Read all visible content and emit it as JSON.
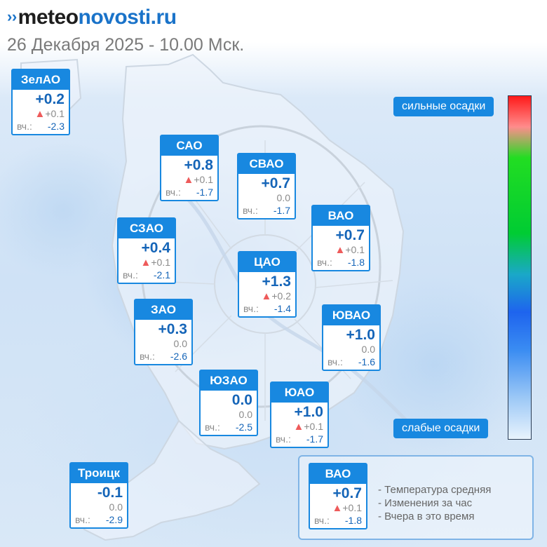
{
  "header": {
    "logo_part1": "meteo",
    "logo_part2": "novosti.ru",
    "logo_icon": "double-chevron-icon",
    "datetime": "26 Декабря 2025 - 10.00 Мск."
  },
  "colors": {
    "header_blue": "#1888e0",
    "temp_blue": "#1565b8",
    "change_up": "#ee5b5b",
    "muted_gray": "#8a8a8a"
  },
  "districts": [
    {
      "id": "zelao",
      "name": "ЗелАО",
      "temp": "+0.2",
      "change": "+0.1",
      "change_dir": "up",
      "yesterday_label": "вч.:",
      "yesterday": "-2.3"
    },
    {
      "id": "sao",
      "name": "САО",
      "temp": "+0.8",
      "change": "+0.1",
      "change_dir": "up",
      "yesterday_label": "вч.:",
      "yesterday": "-1.7"
    },
    {
      "id": "svao",
      "name": "СВАО",
      "temp": "+0.7",
      "change": "0.0",
      "change_dir": "none",
      "yesterday_label": "вч.:",
      "yesterday": "-1.7"
    },
    {
      "id": "vao",
      "name": "ВАО",
      "temp": "+0.7",
      "change": "+0.1",
      "change_dir": "up",
      "yesterday_label": "вч.:",
      "yesterday": "-1.8"
    },
    {
      "id": "szao",
      "name": "СЗАО",
      "temp": "+0.4",
      "change": "+0.1",
      "change_dir": "up",
      "yesterday_label": "вч.:",
      "yesterday": "-2.1"
    },
    {
      "id": "cao",
      "name": "ЦАО",
      "temp": "+1.3",
      "change": "+0.2",
      "change_dir": "up",
      "yesterday_label": "вч.:",
      "yesterday": "-1.4"
    },
    {
      "id": "zao",
      "name": "ЗАО",
      "temp": "+0.3",
      "change": "0.0",
      "change_dir": "none",
      "yesterday_label": "вч.:",
      "yesterday": "-2.6"
    },
    {
      "id": "yuvao",
      "name": "ЮВАО",
      "temp": "+1.0",
      "change": "0.0",
      "change_dir": "none",
      "yesterday_label": "вч.:",
      "yesterday": "-1.6"
    },
    {
      "id": "yuzao",
      "name": "ЮЗАО",
      "temp": "0.0",
      "change": "0.0",
      "change_dir": "none",
      "yesterday_label": "вч.:",
      "yesterday": "-2.5"
    },
    {
      "id": "yuao",
      "name": "ЮАО",
      "temp": "+1.0",
      "change": "+0.1",
      "change_dir": "up",
      "yesterday_label": "вч.:",
      "yesterday": "-1.7"
    },
    {
      "id": "troitsk",
      "name": "Троицк",
      "temp": "-0.1",
      "change": "0.0",
      "change_dir": "none",
      "yesterday_label": "вч.:",
      "yesterday": "-2.9"
    }
  ],
  "precip_scale": {
    "top_label": "сильные осадки",
    "bottom_label": "слабые осадки",
    "gradient_colors": [
      "#ff1a1a",
      "#ff8c8c",
      "#22dd22",
      "#00cc33",
      "#1aa8c8",
      "#1e64ee",
      "#3a8cf2",
      "#9cc8f6",
      "#e8f3fd"
    ]
  },
  "legend": {
    "sample": {
      "name": "ВАО",
      "temp": "+0.7",
      "change": "+0.1",
      "change_dir": "up",
      "yesterday_label": "вч.:",
      "yesterday": "-1.8"
    },
    "items": [
      "- Температура средняя",
      "- Изменения за час",
      "- Вчера в это время"
    ]
  }
}
